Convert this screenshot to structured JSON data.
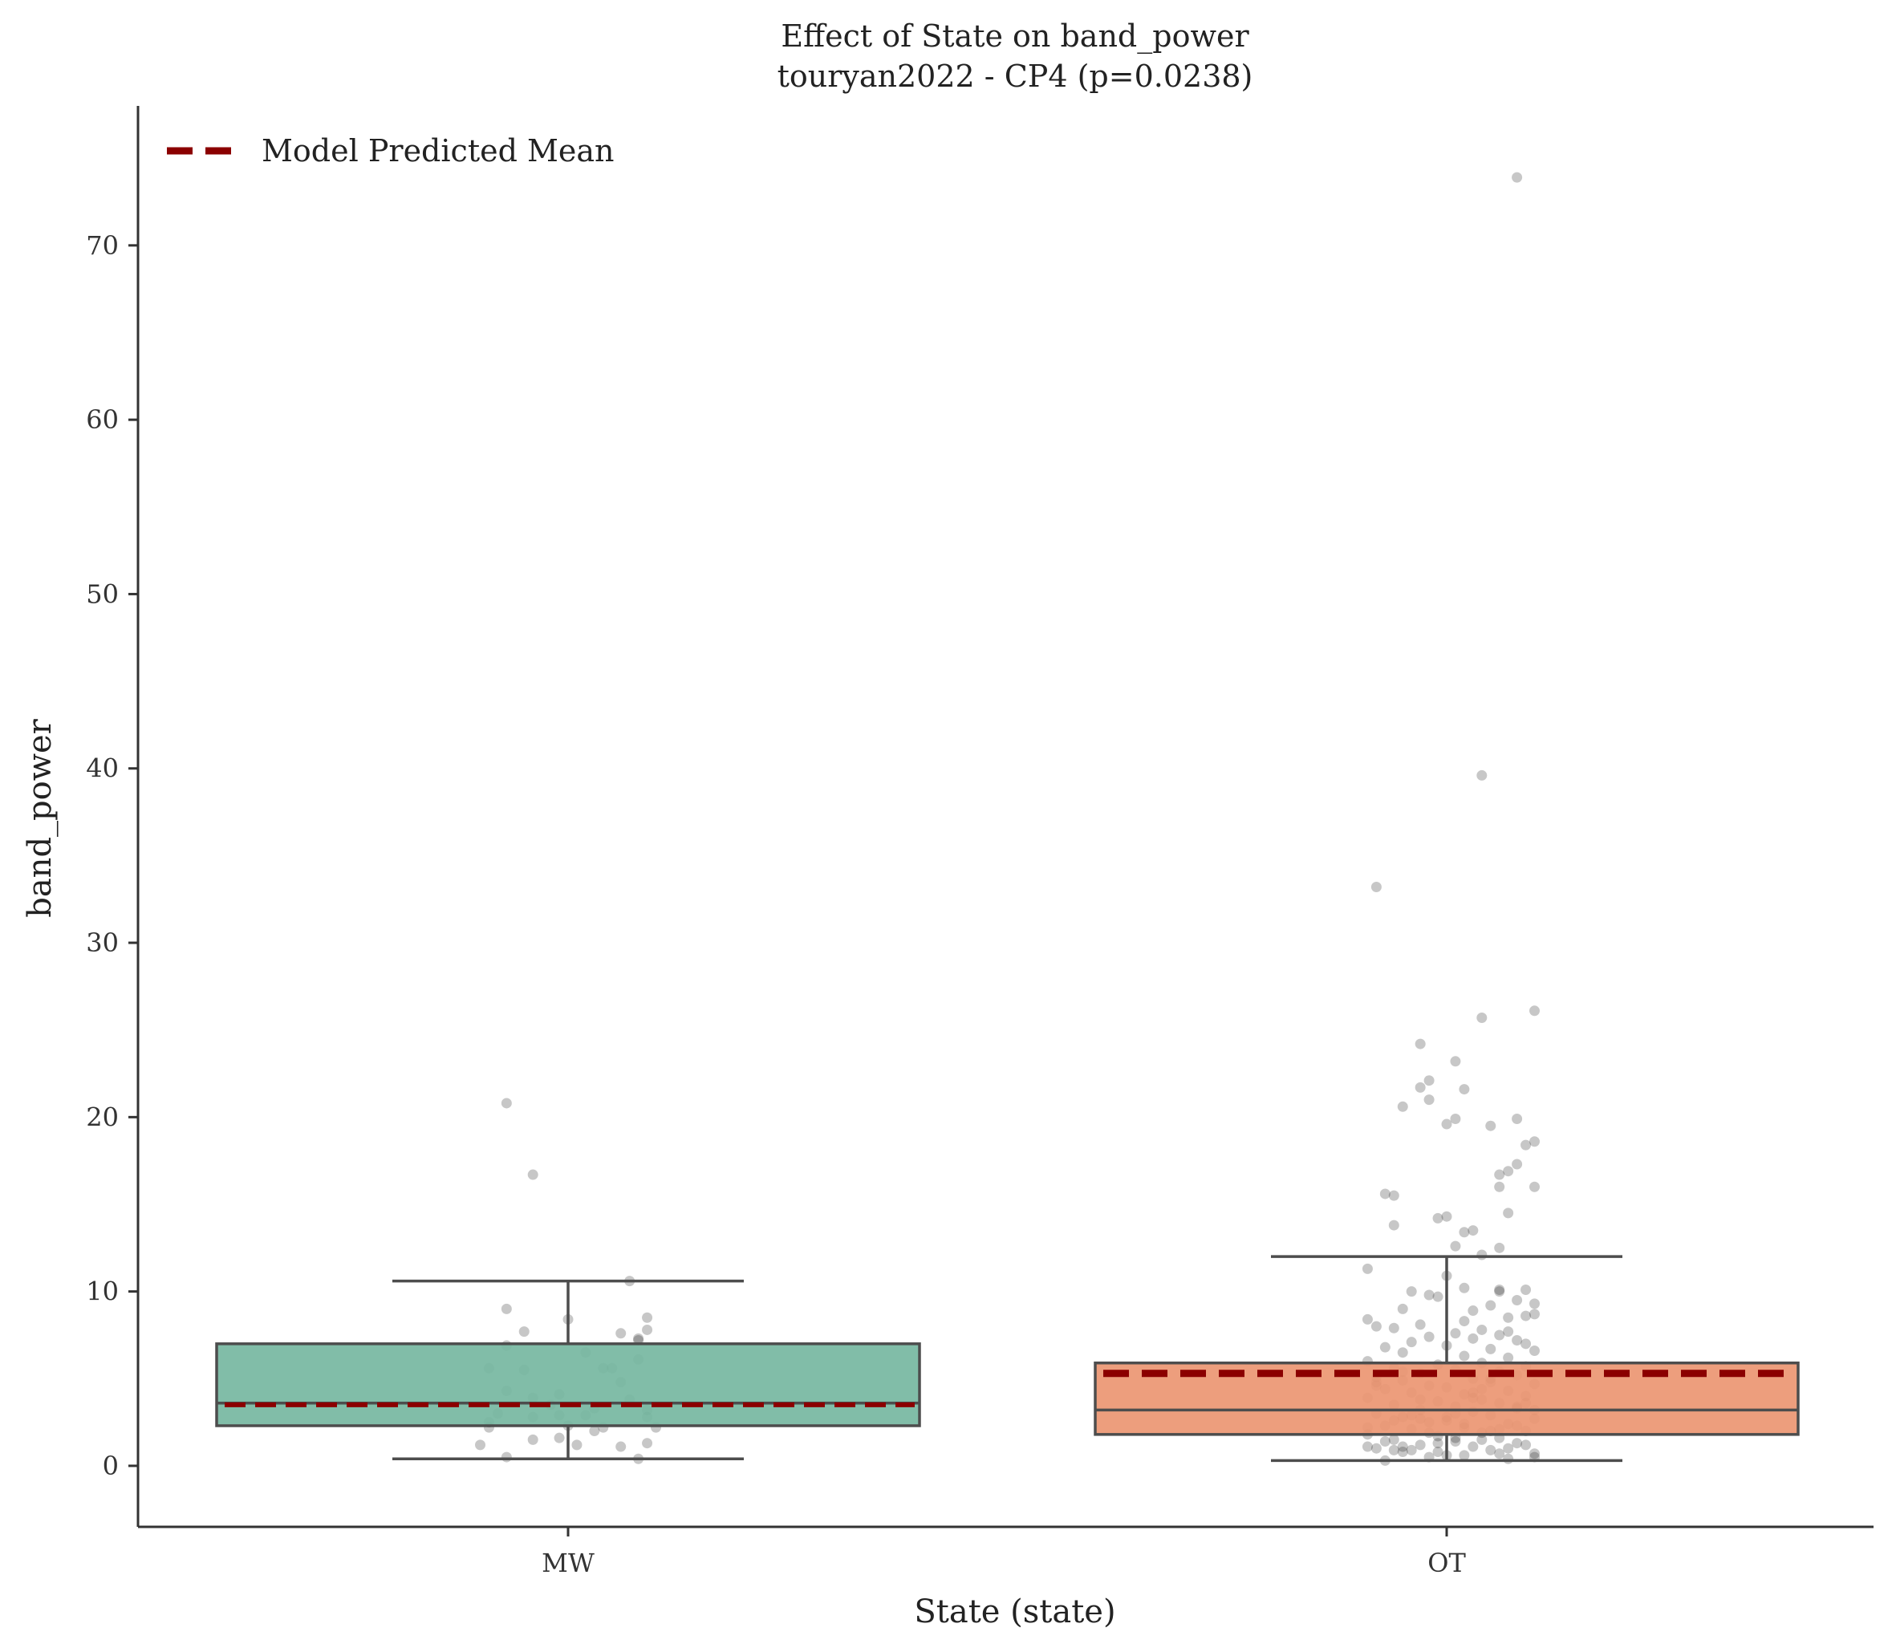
{
  "chart_data": {
    "type": "box",
    "title": "Effect of State on band_power",
    "subtitle": "touryan2022 - CP4 (p=0.0238)",
    "xlabel": "State (state)",
    "ylabel": "band_power",
    "categories": [
      "MW",
      "OT"
    ],
    "ylim": [
      -3.5,
      78
    ],
    "yticks": [
      0,
      10,
      20,
      30,
      40,
      50,
      60,
      70
    ],
    "grid": false,
    "legend": {
      "placement": "top-left",
      "entries": [
        "Model Predicted Mean"
      ]
    },
    "colors": {
      "MW": "#76b7a1",
      "OT": "#eb9672",
      "mean_line": "#8b0000",
      "box_edge": "#4d4d4d",
      "points": "#000000"
    },
    "boxes": [
      {
        "category": "MW",
        "whisker_low": 0.4,
        "q1": 2.3,
        "median": 3.6,
        "q3": 7.0,
        "whisker_high": 10.6,
        "predicted_mean": 3.5
      },
      {
        "category": "OT",
        "whisker_low": 0.3,
        "q1": 1.8,
        "median": 3.2,
        "q3": 5.9,
        "whisker_high": 12.0,
        "predicted_mean": 5.3
      }
    ],
    "points": {
      "MW": [
        [
          -0.07,
          20.8
        ],
        [
          -0.04,
          16.7
        ],
        [
          0.07,
          10.6
        ],
        [
          -0.07,
          9.0
        ],
        [
          0.0,
          8.4
        ],
        [
          0.09,
          8.5
        ],
        [
          -0.05,
          7.7
        ],
        [
          0.06,
          7.6
        ],
        [
          0.09,
          7.8
        ],
        [
          0.08,
          7.2
        ],
        [
          0.08,
          7.3
        ],
        [
          -0.07,
          6.9
        ],
        [
          0.02,
          6.5
        ],
        [
          0.08,
          6.1
        ],
        [
          -0.09,
          5.6
        ],
        [
          -0.05,
          5.5
        ],
        [
          0.04,
          5.6
        ],
        [
          0.05,
          5.6
        ],
        [
          0.06,
          4.8
        ],
        [
          -0.07,
          4.3
        ],
        [
          -0.01,
          4.1
        ],
        [
          -0.04,
          3.9
        ],
        [
          0.03,
          3.3
        ],
        [
          0.09,
          3.2
        ],
        [
          -0.02,
          3.5
        ],
        [
          0.07,
          3.8
        ],
        [
          -0.08,
          3.0
        ],
        [
          -0.04,
          2.8
        ],
        [
          -0.01,
          2.9
        ],
        [
          0.02,
          2.9
        ],
        [
          0.09,
          2.8
        ],
        [
          -0.09,
          2.5
        ],
        [
          0.0,
          2.3
        ],
        [
          0.04,
          2.2
        ],
        [
          -0.09,
          2.2
        ],
        [
          0.03,
          2.0
        ],
        [
          0.1,
          2.2
        ],
        [
          -0.01,
          1.6
        ],
        [
          -0.04,
          1.5
        ],
        [
          0.01,
          1.2
        ],
        [
          0.06,
          1.1
        ],
        [
          0.09,
          1.3
        ],
        [
          -0.1,
          1.2
        ],
        [
          -0.07,
          0.5
        ],
        [
          0.08,
          0.4
        ]
      ],
      "OT": [
        [
          0.08,
          73.9
        ],
        [
          0.04,
          39.6
        ],
        [
          -0.08,
          33.2
        ],
        [
          0.1,
          26.1
        ],
        [
          0.04,
          25.7
        ],
        [
          -0.03,
          24.2
        ],
        [
          0.01,
          23.2
        ],
        [
          -0.02,
          22.1
        ],
        [
          -0.03,
          21.7
        ],
        [
          0.02,
          21.6
        ],
        [
          -0.02,
          21.0
        ],
        [
          -0.05,
          20.6
        ],
        [
          0.08,
          19.9
        ],
        [
          0.01,
          19.9
        ],
        [
          -0.0,
          19.6
        ],
        [
          0.05,
          19.5
        ],
        [
          0.1,
          18.6
        ],
        [
          0.09,
          18.4
        ],
        [
          0.08,
          17.3
        ],
        [
          0.07,
          16.9
        ],
        [
          0.06,
          16.7
        ],
        [
          0.1,
          16.0
        ],
        [
          0.06,
          16.0
        ],
        [
          -0.07,
          15.6
        ],
        [
          -0.06,
          15.5
        ],
        [
          0.07,
          14.5
        ],
        [
          -0.0,
          14.3
        ],
        [
          -0.01,
          14.2
        ],
        [
          0.03,
          13.5
        ],
        [
          0.02,
          13.4
        ],
        [
          -0.06,
          13.8
        ],
        [
          0.01,
          12.6
        ],
        [
          0.06,
          12.5
        ],
        [
          0.04,
          12.1
        ],
        [
          -0.09,
          11.3
        ],
        [
          0.0,
          10.9
        ],
        [
          0.06,
          10.1
        ],
        [
          0.09,
          10.1
        ],
        [
          0.06,
          10.0
        ],
        [
          -0.04,
          10.0
        ],
        [
          0.02,
          10.2
        ],
        [
          -0.02,
          9.8
        ],
        [
          0.08,
          9.5
        ],
        [
          -0.01,
          9.7
        ],
        [
          0.1,
          9.3
        ],
        [
          0.05,
          9.2
        ],
        [
          -0.05,
          9.0
        ],
        [
          0.03,
          8.9
        ],
        [
          0.1,
          8.7
        ],
        [
          0.09,
          8.6
        ],
        [
          0.07,
          8.5
        ],
        [
          -0.09,
          8.4
        ],
        [
          0.02,
          8.3
        ],
        [
          -0.03,
          8.1
        ],
        [
          -0.08,
          8.0
        ],
        [
          -0.06,
          7.9
        ],
        [
          0.04,
          7.8
        ],
        [
          0.07,
          7.7
        ],
        [
          0.01,
          7.6
        ],
        [
          0.06,
          7.5
        ],
        [
          -0.02,
          7.4
        ],
        [
          0.03,
          7.3
        ],
        [
          0.08,
          7.2
        ],
        [
          -0.04,
          7.1
        ],
        [
          0.09,
          7.0
        ],
        [
          0.0,
          6.9
        ],
        [
          -0.07,
          6.8
        ],
        [
          0.05,
          6.7
        ],
        [
          0.1,
          6.6
        ],
        [
          -0.05,
          6.5
        ],
        [
          0.02,
          6.3
        ],
        [
          0.07,
          6.2
        ],
        [
          -0.09,
          6.0
        ],
        [
          0.04,
          5.9
        ],
        [
          -0.01,
          5.8
        ],
        [
          0.09,
          5.7
        ],
        [
          -0.06,
          5.6
        ],
        [
          0.01,
          5.5
        ],
        [
          0.06,
          5.4
        ],
        [
          -0.03,
          5.3
        ],
        [
          0.08,
          5.2
        ],
        [
          -0.08,
          5.1
        ],
        [
          0.03,
          5.0
        ],
        [
          -0.05,
          4.9
        ],
        [
          0.05,
          4.8
        ],
        [
          0.1,
          4.7
        ],
        [
          -0.02,
          4.6
        ],
        [
          0.0,
          4.5
        ],
        [
          -0.07,
          4.4
        ],
        [
          0.07,
          4.3
        ],
        [
          -0.04,
          4.2
        ],
        [
          0.02,
          4.1
        ],
        [
          0.09,
          4.0
        ],
        [
          -0.09,
          3.9
        ],
        [
          0.04,
          3.8
        ],
        [
          -0.01,
          3.7
        ],
        [
          0.06,
          3.6
        ],
        [
          -0.06,
          3.5
        ],
        [
          0.01,
          3.4
        ],
        [
          0.08,
          3.3
        ],
        [
          -0.03,
          3.2
        ],
        [
          0.03,
          3.1
        ],
        [
          -0.08,
          3.0
        ],
        [
          0.05,
          2.9
        ],
        [
          -0.05,
          2.8
        ],
        [
          0.1,
          2.7
        ],
        [
          0.0,
          2.6
        ],
        [
          -0.02,
          2.5
        ],
        [
          0.07,
          2.4
        ],
        [
          -0.07,
          2.3
        ],
        [
          0.02,
          2.2
        ],
        [
          -0.04,
          2.1
        ],
        [
          0.09,
          2.0
        ],
        [
          0.04,
          1.9
        ],
        [
          -0.09,
          1.8
        ],
        [
          -0.01,
          1.7
        ],
        [
          0.06,
          1.6
        ],
        [
          -0.06,
          1.5
        ],
        [
          0.01,
          1.4
        ],
        [
          0.08,
          1.3
        ],
        [
          -0.03,
          1.2
        ],
        [
          0.03,
          1.1
        ],
        [
          -0.08,
          1.0
        ],
        [
          0.05,
          0.9
        ],
        [
          -0.05,
          0.8
        ],
        [
          0.1,
          0.7
        ],
        [
          0.0,
          0.6
        ],
        [
          -0.02,
          0.5
        ],
        [
          0.07,
          0.4
        ],
        [
          -0.07,
          0.3
        ],
        [
          0.02,
          0.6
        ],
        [
          -0.04,
          0.9
        ],
        [
          0.09,
          1.2
        ],
        [
          0.04,
          1.5
        ],
        [
          -0.09,
          1.1
        ],
        [
          -0.01,
          0.8
        ],
        [
          0.06,
          2.1
        ],
        [
          -0.06,
          2.6
        ],
        [
          0.01,
          3.0
        ],
        [
          0.08,
          3.4
        ],
        [
          -0.03,
          3.8
        ],
        [
          0.03,
          4.2
        ],
        [
          -0.08,
          4.6
        ],
        [
          0.05,
          5.0
        ],
        [
          -0.05,
          5.4
        ],
        [
          0.1,
          3.2
        ],
        [
          0.0,
          2.8
        ],
        [
          -0.02,
          1.9
        ],
        [
          0.07,
          1.0
        ],
        [
          -0.07,
          1.4
        ],
        [
          0.02,
          2.4
        ],
        [
          -0.04,
          2.9
        ],
        [
          0.09,
          3.6
        ],
        [
          0.04,
          4.4
        ],
        [
          -0.09,
          2.2
        ],
        [
          -0.01,
          1.3
        ],
        [
          0.06,
          0.7
        ],
        [
          -0.06,
          0.9
        ],
        [
          0.01,
          1.6
        ],
        [
          0.08,
          2.3
        ],
        [
          -0.03,
          2.7
        ],
        [
          0.03,
          3.9
        ],
        [
          -0.08,
          4.8
        ],
        [
          0.05,
          2.0
        ],
        [
          -0.05,
          1.1
        ],
        [
          0.1,
          0.5
        ]
      ]
    }
  }
}
